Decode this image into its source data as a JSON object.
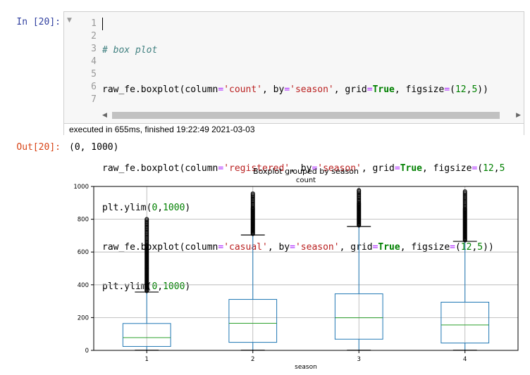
{
  "cell": {
    "in_prompt": "In [20]:",
    "out_prompt": "Out[20]:",
    "collapse_icon": "triangle-down",
    "line_numbers": [
      "1",
      "2",
      "3",
      "4",
      "5",
      "6",
      "7"
    ],
    "exec_info": "executed in 655ms, finished 19:22:49 2021-03-03",
    "output_text": "(0, 1000)"
  },
  "chart_data": {
    "type": "box",
    "title": "Boxplot grouped by season",
    "subtitle": "count",
    "xlabel": "season",
    "ylabel": "",
    "categories": [
      "1",
      "2",
      "3",
      "4"
    ],
    "ylim": [
      0,
      1000
    ],
    "yticks": [
      "0",
      "200",
      "400",
      "600",
      "800",
      "1000"
    ],
    "grid": true,
    "boxes": [
      {
        "category": "1",
        "whisker_low": 1,
        "q1": 24,
        "median": 78,
        "q3": 164,
        "whisker_high": 356,
        "outliers_from": 356,
        "outliers_to": 801
      },
      {
        "category": "2",
        "whisker_low": 1,
        "q1": 49,
        "median": 165,
        "q3": 311,
        "whisker_high": 704,
        "outliers_from": 704,
        "outliers_to": 957
      },
      {
        "category": "3",
        "whisker_low": 1,
        "q1": 68,
        "median": 199,
        "q3": 345,
        "whisker_high": 756,
        "outliers_from": 756,
        "outliers_to": 977
      },
      {
        "category": "4",
        "whisker_low": 1,
        "q1": 45,
        "median": 155,
        "q3": 294,
        "whisker_high": 665,
        "outliers_from": 665,
        "outliers_to": 970
      }
    ],
    "colors": {
      "box": "#1f77b4",
      "median": "#2ca02c",
      "grid": "#b0b0b0",
      "outlier": "#000000"
    }
  }
}
